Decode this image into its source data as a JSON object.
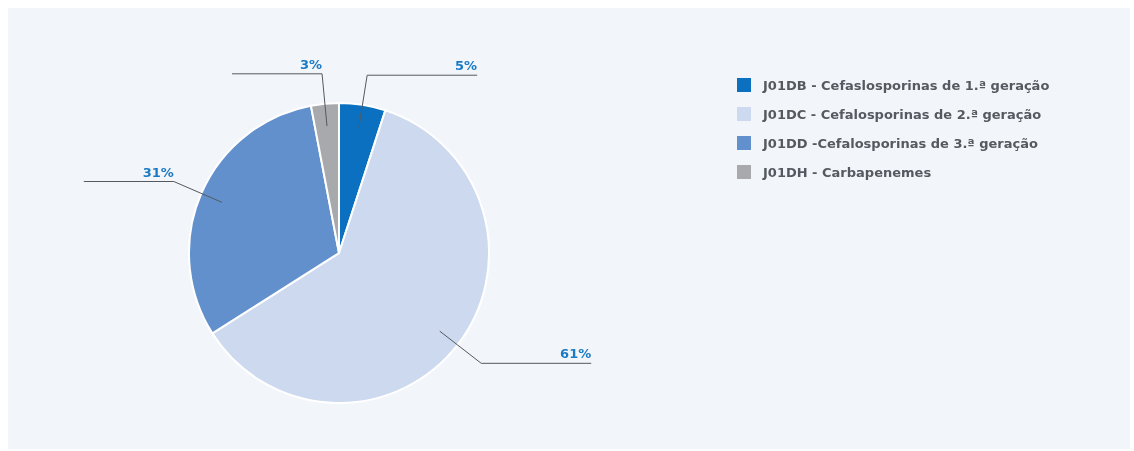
{
  "chart_data": {
    "type": "pie",
    "categories": [
      "J01DB - Cefaslosporinas de 1.ª geração",
      "J01DC - Cefalosporinas de 2.ª geração",
      "J01DD -Cefalosporinas de 3.ª geração",
      "J01DH - Carbapenemes"
    ],
    "values": [
      5,
      61,
      31,
      3
    ],
    "colors": [
      "#0a70bf",
      "#cdd9ee",
      "#6190cc",
      "#a7a9ac"
    ],
    "value_labels": [
      "5%",
      "61%",
      "31%",
      "3%"
    ],
    "legend": "right"
  }
}
